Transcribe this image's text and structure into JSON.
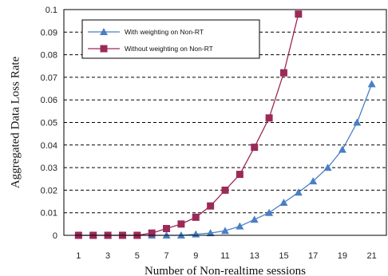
{
  "chart_data": {
    "type": "line",
    "xlabel": "Number of Non-realtime sessions",
    "ylabel": "Aggregated Data Loss Rate",
    "xlim": [
      0,
      22
    ],
    "ylim": [
      0,
      0.1
    ],
    "x_ticks": [
      1,
      3,
      5,
      7,
      9,
      11,
      13,
      15,
      17,
      19,
      21
    ],
    "y_ticks": [
      0,
      0.01,
      0.02,
      0.03,
      0.04,
      0.05,
      0.06,
      0.07,
      0.08,
      0.09,
      0.1
    ],
    "x_tick_labels": [
      "1",
      "3",
      "5",
      "7",
      "9",
      "11",
      "13",
      "15",
      "17",
      "19",
      "21"
    ],
    "y_tick_labels": [
      "0",
      "0.01",
      "0.02",
      "0.03",
      "0.04",
      "0.05",
      "0.06",
      "0.07",
      "0.08",
      "0.09",
      "0.1"
    ],
    "grid": "horizontal-dashed",
    "legend_position": "top-left",
    "series": [
      {
        "name": "With weighting on Non-RT",
        "color": "#4a7fc4",
        "marker": "triangle",
        "x": [
          1,
          2,
          3,
          4,
          5,
          6,
          7,
          8,
          9,
          10,
          11,
          12,
          13,
          14,
          15,
          16,
          17,
          18,
          19,
          20,
          21
        ],
        "y": [
          0,
          0,
          0,
          0,
          0,
          0,
          0,
          0,
          0.0005,
          0.001,
          0.002,
          0.004,
          0.007,
          0.01,
          0.0145,
          0.019,
          0.024,
          0.03,
          0.038,
          0.05,
          0.067
        ]
      },
      {
        "name": "Without weighting on Non-RT",
        "color": "#9b2a58",
        "marker": "square",
        "x": [
          1,
          2,
          3,
          4,
          5,
          6,
          7,
          8,
          9,
          10,
          11,
          12,
          13,
          14,
          15,
          16
        ],
        "y": [
          0,
          0,
          0,
          0,
          0,
          0.001,
          0.003,
          0.005,
          0.008,
          0.013,
          0.02,
          0.027,
          0.039,
          0.052,
          0.072,
          0.098
        ]
      }
    ]
  }
}
